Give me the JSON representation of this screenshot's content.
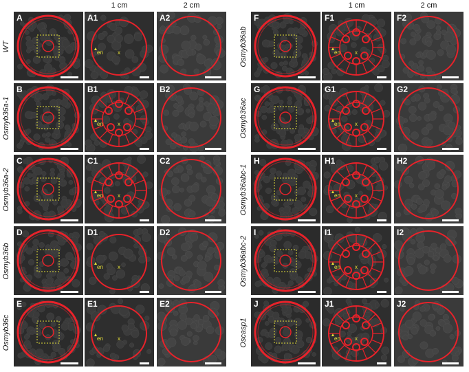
{
  "col_headers": {
    "left_1cm": "1 cm",
    "left_2cm": "2 cm",
    "right_1cm": "1 cm",
    "right_2cm": "2 cm"
  },
  "rows_left": [
    {
      "genotype": "WT",
      "overview": "A",
      "zoom1": "A1",
      "zoom2": "A2",
      "casp": false
    },
    {
      "genotype": "Osmyb36a-1",
      "overview": "B",
      "zoom1": "B1",
      "zoom2": "B2",
      "casp": true
    },
    {
      "genotype": "Osmyb36a-2",
      "overview": "C",
      "zoom1": "C1",
      "zoom2": "C2",
      "casp": true
    },
    {
      "genotype": "Osmyb36b",
      "overview": "D",
      "zoom1": "D1",
      "zoom2": "D2",
      "casp": false
    },
    {
      "genotype": "Osmyb36c",
      "overview": "E",
      "zoom1": "E1",
      "zoom2": "E2",
      "casp": false
    }
  ],
  "rows_right": [
    {
      "genotype": "Osmyb36ab",
      "overview": "F",
      "zoom1": "F1",
      "zoom2": "F2",
      "casp": true
    },
    {
      "genotype": "Osmyb36ac",
      "overview": "G",
      "zoom1": "G1",
      "zoom2": "G2",
      "casp": true
    },
    {
      "genotype": "Osmyb36abc-1",
      "overview": "H",
      "zoom1": "H1",
      "zoom2": "H2",
      "casp": true
    },
    {
      "genotype": "Osmyb36abc-2",
      "overview": "I",
      "zoom1": "I1",
      "zoom2": "I2",
      "casp": true
    },
    {
      "genotype": "Oscasp1",
      "overview": "J",
      "zoom1": "J1",
      "zoom2": "J2",
      "casp": true
    }
  ],
  "annotations": {
    "endodermis": "en",
    "xylem": "x"
  },
  "colors": {
    "stain": "#e8222a",
    "box": "#e6e23a",
    "annot": "#e8e23a",
    "scalebar": "#ffffff"
  }
}
